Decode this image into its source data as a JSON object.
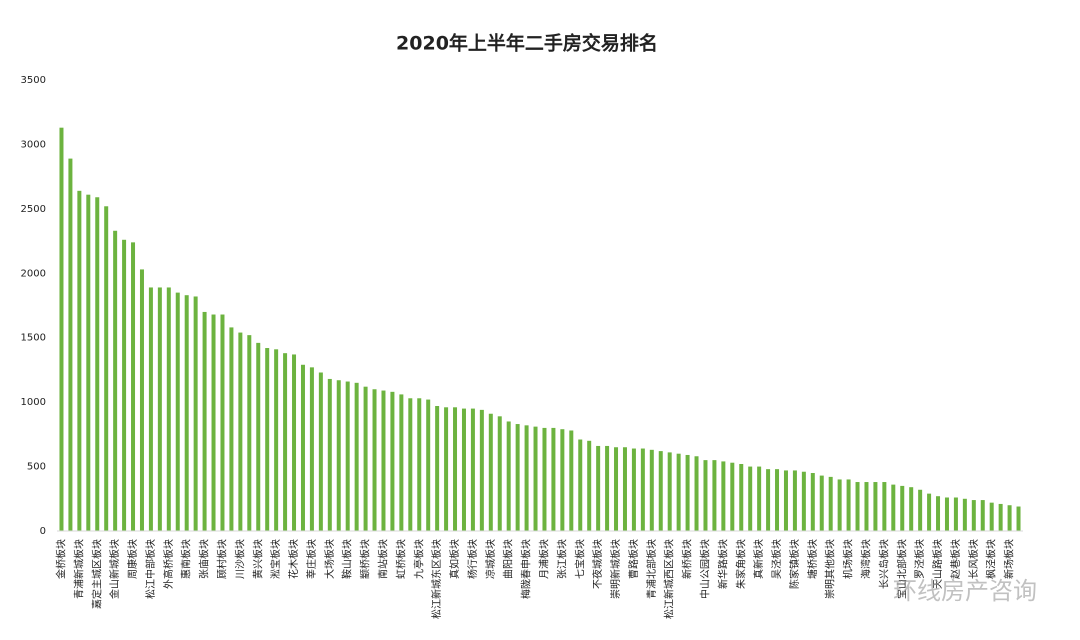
{
  "chart_data": {
    "type": "bar",
    "title": "2020年上半年二手房交易排名",
    "watermark": "环线房产咨询",
    "color": "#6cb33f",
    "ylim": [
      0,
      3500
    ],
    "yticks": [
      0,
      500,
      1000,
      1500,
      2000,
      2500,
      3000,
      3500
    ],
    "categories": [
      "金桥板块",
      null,
      "青浦新城板块",
      null,
      "嘉定主城区板块",
      null,
      "金山新城板块",
      null,
      "周康板块",
      null,
      "松江中部板块",
      null,
      "外高桥板块",
      null,
      "惠南板块",
      null,
      "张庙板块",
      null,
      "顾村板块",
      null,
      "川沙板块",
      null,
      "黄兴板块",
      null,
      "淞宝板块",
      null,
      "花木板块",
      null,
      "莘庄板块",
      null,
      "大场板块",
      null,
      "鞍山板块",
      null,
      "颛桥板块",
      null,
      "南站板块",
      null,
      "虹桥板块",
      null,
      "九亭板块",
      null,
      "松江新城东区板块",
      null,
      "真如板块",
      null,
      "杨行板块",
      null,
      "凉城板块",
      null,
      "曲阳板块",
      null,
      "梅陇春申板块",
      null,
      "月浦板块",
      null,
      "张江板块",
      null,
      "七宝板块",
      null,
      "不夜城板块",
      null,
      "崇明新城板块",
      null,
      "曹路板块",
      null,
      "青浦北部板块",
      null,
      "松江新城西区板块",
      null,
      "新桥板块",
      null,
      "中山公园板块",
      null,
      "新华路板块",
      null,
      "朱家角板块",
      null,
      "真新板块",
      null,
      "吴泾板块",
      null,
      "陈家镇板块",
      null,
      "塘桥板块",
      null,
      "崇明其他板块",
      null,
      "机场板块",
      null,
      "海湾板块",
      null,
      "长兴岛板块",
      null,
      "宝山北部板块",
      null,
      "罗泾板块",
      null,
      "天山路板块",
      null,
      "赵巷板块",
      null,
      "长风板块",
      null,
      "枫泾板块",
      null,
      "新场板块",
      null
    ],
    "values": [
      3130,
      2890,
      2640,
      2610,
      2590,
      2520,
      2330,
      2260,
      2240,
      2030,
      1890,
      1890,
      1890,
      1850,
      1830,
      1820,
      1700,
      1680,
      1680,
      1580,
      1540,
      1520,
      1460,
      1420,
      1410,
      1380,
      1370,
      1290,
      1270,
      1230,
      1180,
      1170,
      1160,
      1150,
      1120,
      1100,
      1090,
      1080,
      1060,
      1030,
      1030,
      1020,
      970,
      960,
      960,
      950,
      950,
      940,
      910,
      890,
      850,
      830,
      820,
      810,
      800,
      800,
      790,
      780,
      710,
      700,
      660,
      660,
      650,
      650,
      640,
      640,
      630,
      620,
      610,
      600,
      590,
      580,
      550,
      550,
      540,
      530,
      520,
      500,
      500,
      480,
      480,
      470,
      470,
      460,
      450,
      430,
      420,
      400,
      400,
      380,
      380,
      380,
      380,
      360,
      350,
      340,
      320,
      290,
      270,
      260,
      260,
      250,
      240,
      240,
      220,
      210,
      200,
      190
    ]
  }
}
